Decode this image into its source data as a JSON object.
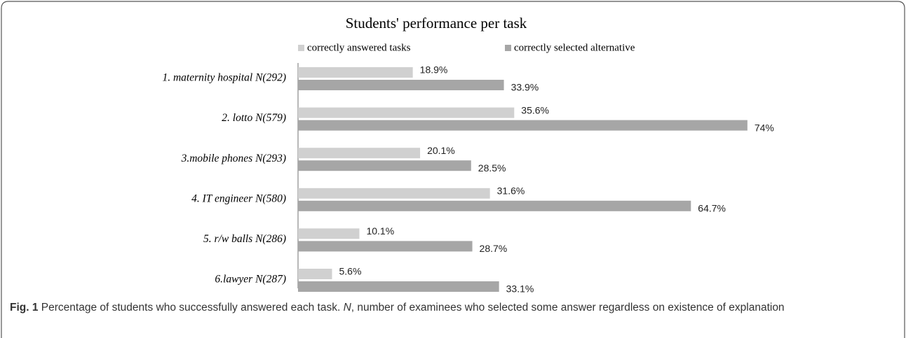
{
  "chart_data": {
    "type": "bar",
    "orientation": "horizontal",
    "title": "Students' performance per task",
    "categories": [
      "1. maternity hospital N(292)",
      "2. lotto N(579)",
      "3.mobile phones N(293)",
      "4. IT engineer N(580)",
      "5. r/w balls N(286)",
      "6.lawyer N(287)"
    ],
    "series": [
      {
        "name": "correctly answered tasks",
        "color": "#d0d0d0",
        "values": [
          18.9,
          35.6,
          20.1,
          31.6,
          10.1,
          5.6
        ],
        "value_labels": [
          "18.9%",
          "35.6%",
          "20.1%",
          "31.6%",
          "10.1%",
          "5.6%"
        ]
      },
      {
        "name": "correctly selected alternative",
        "color": "#a6a6a6",
        "values": [
          33.9,
          74,
          28.5,
          64.7,
          28.7,
          33.1
        ],
        "value_labels": [
          "33.9%",
          "74%",
          "28.5%",
          "64.7%",
          "28.7%",
          "33.1%"
        ]
      }
    ]
  },
  "caption": {
    "label": "Fig. 1",
    "text_1": "Percentage of students who successfully answered each task. ",
    "italic": "N",
    "text_2": ", number of examinees who selected some answer regardless on existence of explanation"
  }
}
